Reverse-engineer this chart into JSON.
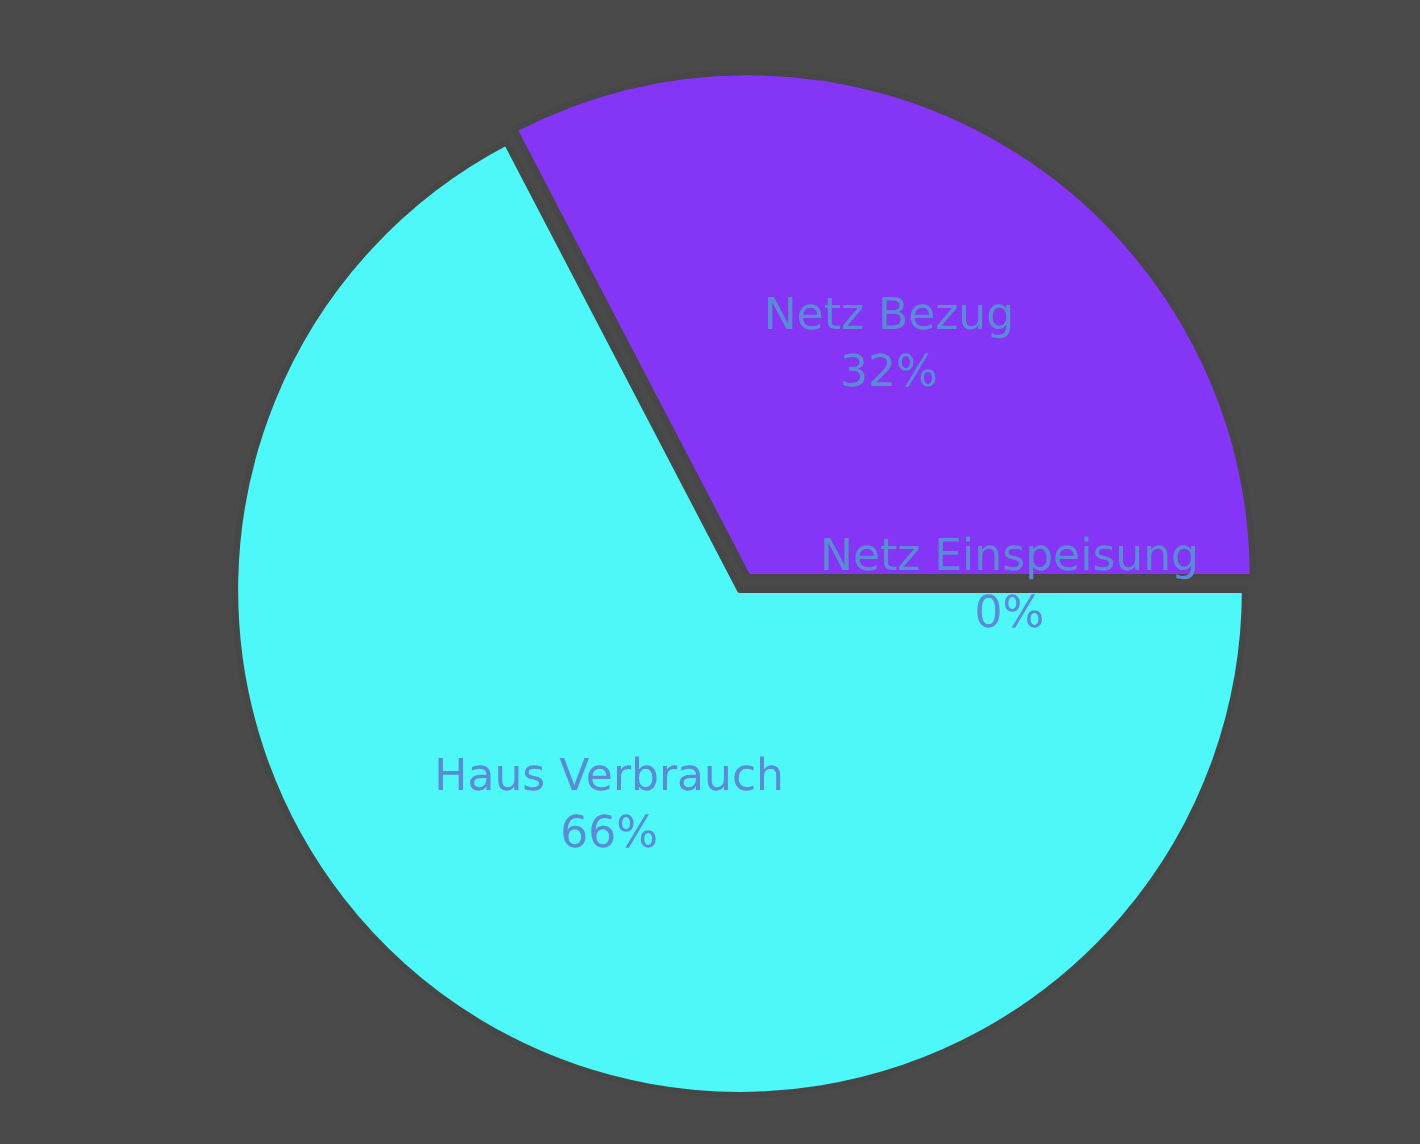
{
  "chart_data": {
    "type": "pie",
    "categories": [
      "Netz Einspeisung",
      "Netz Bezug",
      "Haus Verbrauch"
    ],
    "values": [
      0,
      32,
      66
    ],
    "value_labels": [
      "0%",
      "32%",
      "66%"
    ],
    "colors": [
      "#3a7bd5",
      "#8535f5",
      "#4ef8f8"
    ],
    "legend": false
  }
}
